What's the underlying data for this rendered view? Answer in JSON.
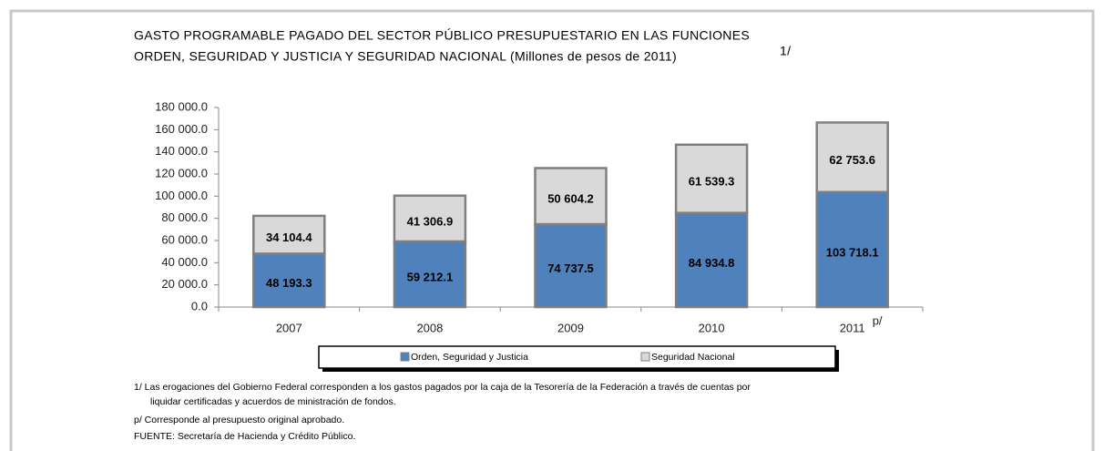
{
  "chart_data": {
    "type": "stacked_bar",
    "title": [
      "GASTO PROGRAMABLE PAGADO DEL SECTOR PÚBLICO PRESUPUESTARIO EN LAS FUNCIONES",
      "ORDEN, SEGURIDAD Y JUSTICIA Y SEGURIDAD NACIONAL (Millones de pesos de 2011)"
    ],
    "title_note": "1/",
    "categories": [
      "2007",
      "2008",
      "2009",
      "2010",
      "2011"
    ],
    "category_note": "p/",
    "series": [
      {
        "name": "Orden, Seguridad y Justicia",
        "color": "#4f81bd",
        "values": [
          48193.3,
          59212.1,
          74737.5,
          84934.8,
          103718.1
        ],
        "value_labels": [
          "48 193.3",
          "59 212.1",
          "74 737.5",
          "84 934.8",
          "103 718.1"
        ]
      },
      {
        "name": "Seguridad Nacional",
        "color": "#d9d9d9",
        "values": [
          34104.4,
          41306.9,
          50604.2,
          61539.3,
          62753.6
        ],
        "value_labels": [
          "34 104.4",
          "41 306.9",
          "50 604.2",
          "61 539.3",
          "62 753.6"
        ]
      }
    ],
    "ylim": [
      0,
      180000
    ],
    "yticks": [
      {
        "value": 0,
        "label": "0.0"
      },
      {
        "value": 20000,
        "label": "20 000.0"
      },
      {
        "value": 40000,
        "label": "40 000.0"
      },
      {
        "value": 60000,
        "label": "60 000.0"
      },
      {
        "value": 80000,
        "label": "80 000.0"
      },
      {
        "value": 100000,
        "label": "100 000.0"
      },
      {
        "value": 120000,
        "label": "120 000.0"
      },
      {
        "value": 140000,
        "label": "140 000.0"
      },
      {
        "value": 160000,
        "label": "160 000.0"
      },
      {
        "value": 180000,
        "label": "180 000.0"
      }
    ],
    "legend": "bottom",
    "notes": [
      "1/ Las erogaciones del Gobierno Federal corresponden a los gastos pagados por la caja de la Tesorería de la Federación a través de cuentas por",
      "liquidar certificadas y acuerdos de ministración de fondos.",
      "p/ Corresponde al presupuesto original aprobado.",
      "FUENTE: Secretaría de Hacienda y Crédito Público."
    ]
  }
}
